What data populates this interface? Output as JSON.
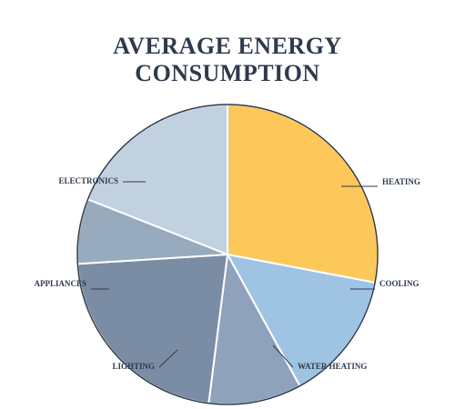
{
  "chart_data": {
    "type": "pie",
    "title": "AVERAGE ENERGY CONSUMPTION",
    "categories": [
      "HEATING",
      "COOLING",
      "WATER HEATING",
      "LIGHTING",
      "APPLIANCES",
      "ELECTRONICS"
    ],
    "values": [
      28,
      14,
      10,
      22,
      7,
      19
    ],
    "colors": [
      "#fcc85a",
      "#9fc3e2",
      "#8ea3bb",
      "#7a8da4",
      "#98aabd",
      "#c1d1e0"
    ]
  }
}
